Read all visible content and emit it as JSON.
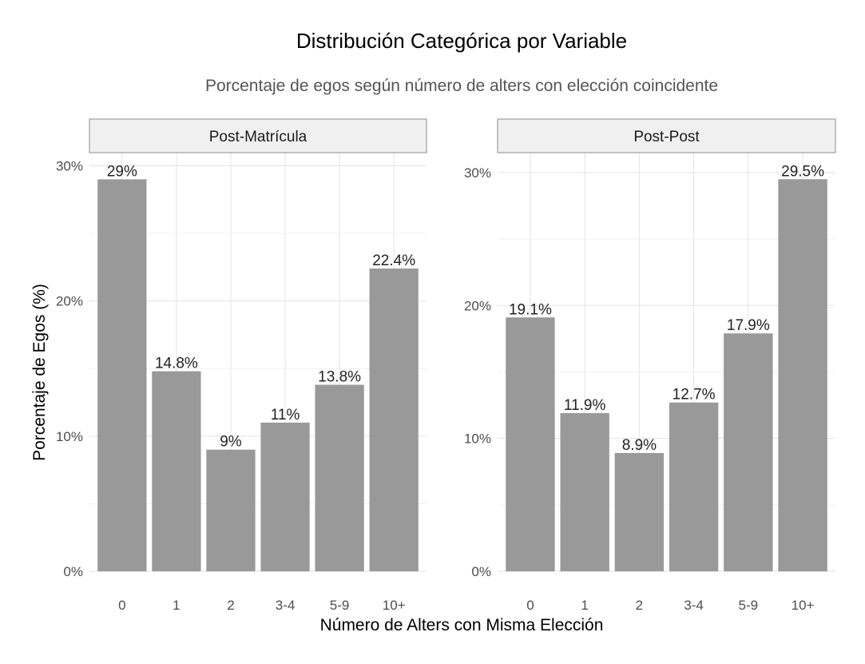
{
  "chart_data": {
    "type": "bar",
    "title": "Distribución Categórica por Variable",
    "subtitle": "Porcentaje de egos según número de alters con elección coincidente",
    "xlabel": "Número de Alters con Misma Elección",
    "ylabel": "Porcentaje de Egos (%)",
    "categories": [
      "0",
      "1",
      "2",
      "3-4",
      "5-9",
      "10+"
    ],
    "bar_color": "#999999",
    "grid": true,
    "panels": [
      {
        "name": "Post-Matrícula",
        "values": [
          29,
          14.8,
          9,
          11,
          13.8,
          22.4
        ],
        "labels": [
          "29%",
          "14.8%",
          "9%",
          "11%",
          "13.8%",
          "22.4%"
        ],
        "ylim": [
          0,
          29.5
        ],
        "yticks": [
          0,
          10,
          20,
          30
        ],
        "ytick_labels": [
          "0%",
          "10%",
          "20%",
          "30%"
        ]
      },
      {
        "name": "Post-Post",
        "values": [
          19.1,
          11.9,
          8.9,
          12.7,
          17.9,
          29.5
        ],
        "labels": [
          "19.1%",
          "11.9%",
          "8.9%",
          "12.7%",
          "17.9%",
          "29.5%"
        ],
        "ylim": [
          0,
          30
        ],
        "yticks": [
          0,
          10,
          20,
          30
        ],
        "ytick_labels": [
          "0%",
          "10%",
          "20%",
          "30%"
        ]
      }
    ]
  }
}
